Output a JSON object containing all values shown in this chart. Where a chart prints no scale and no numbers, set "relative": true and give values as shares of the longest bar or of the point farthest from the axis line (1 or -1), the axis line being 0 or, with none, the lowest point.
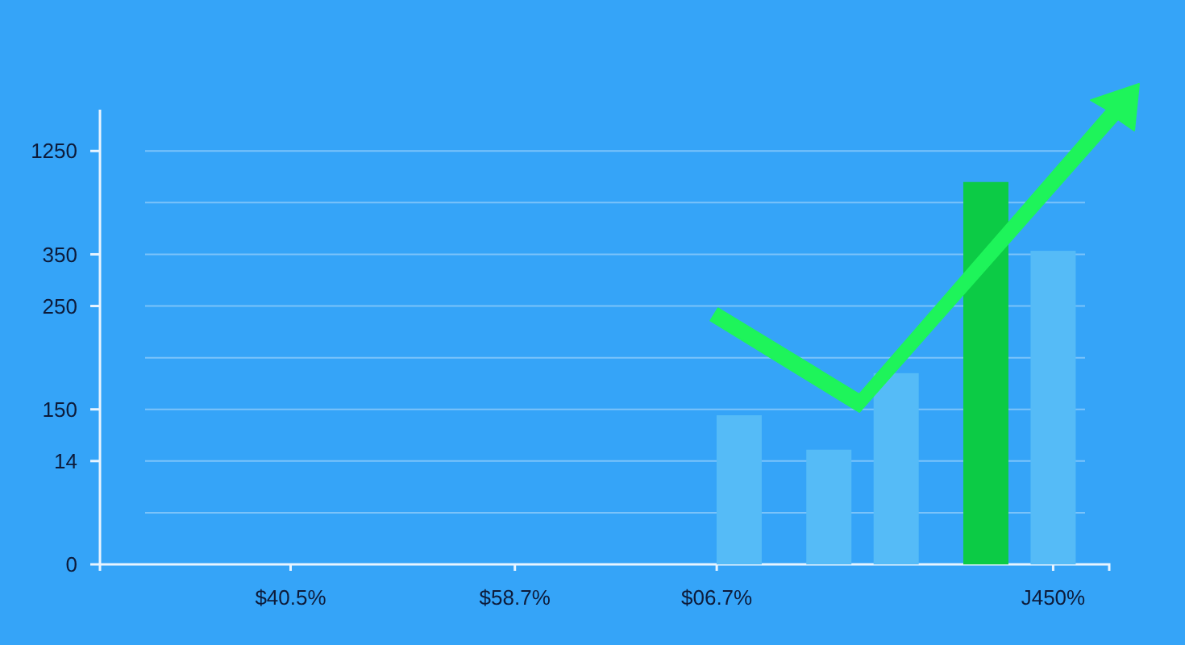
{
  "chart_data": {
    "type": "bar",
    "relative": true,
    "categories": [
      null,
      null,
      null,
      null,
      null,
      null,
      null,
      null,
      "$40.5%",
      null,
      null,
      null,
      null,
      null,
      null,
      null,
      null,
      null,
      "$58.7%",
      null,
      null,
      null,
      null,
      null,
      null,
      null,
      null,
      "$06.7%",
      null,
      null,
      null,
      null,
      null,
      null,
      null,
      null,
      null,
      null,
      null,
      null,
      null,
      null,
      "J450%",
      null,
      null
    ],
    "series": [
      {
        "color": "#55bbf7",
        "values": [
          null,
          null,
          null,
          null,
          null,
          null,
          null,
          null,
          null,
          null,
          null,
          null,
          null,
          null,
          null,
          null,
          null,
          null,
          null,
          null,
          null,
          null,
          null,
          null,
          null,
          null,
          null,
          null,
          0.39,
          null,
          null,
          null,
          0.3,
          null,
          null,
          0.5,
          null,
          null,
          null,
          null,
          null,
          null,
          0.82,
          null,
          null
        ]
      },
      {
        "color": "#0ccb45",
        "values": [
          null,
          null,
          null,
          null,
          null,
          null,
          null,
          null,
          null,
          null,
          null,
          null,
          null,
          null,
          null,
          null,
          null,
          null,
          null,
          null,
          null,
          null,
          null,
          null,
          null,
          null,
          null,
          null,
          null,
          null,
          null,
          null,
          null,
          null,
          null,
          null,
          null,
          null,
          null,
          1,
          null,
          null,
          null,
          null,
          null
        ]
      }
    ],
    "annotations": [
      "1250",
      "350",
      "250",
      "150",
      "14",
      "0"
    ],
    "grid": "y"
  }
}
